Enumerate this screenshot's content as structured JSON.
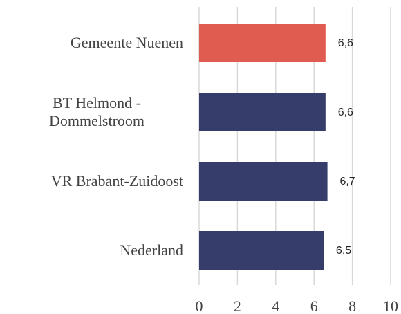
{
  "chart_data": {
    "type": "hbar",
    "categories": [
      "Gemeente Nuenen",
      "BT Helmond - Dommelstroom",
      "VR Brabant-Zuidoost",
      "Nederland"
    ],
    "values": [
      6.6,
      6.6,
      6.7,
      6.5
    ],
    "value_labels": [
      "6,6",
      "6,6",
      "6,7",
      "6,5"
    ],
    "colors": [
      "#e05c50",
      "#373d6a",
      "#373d6a",
      "#373d6a"
    ],
    "xlim": [
      0,
      10
    ],
    "xticks": [
      0,
      2,
      4,
      6,
      8,
      10
    ],
    "grid": true
  }
}
